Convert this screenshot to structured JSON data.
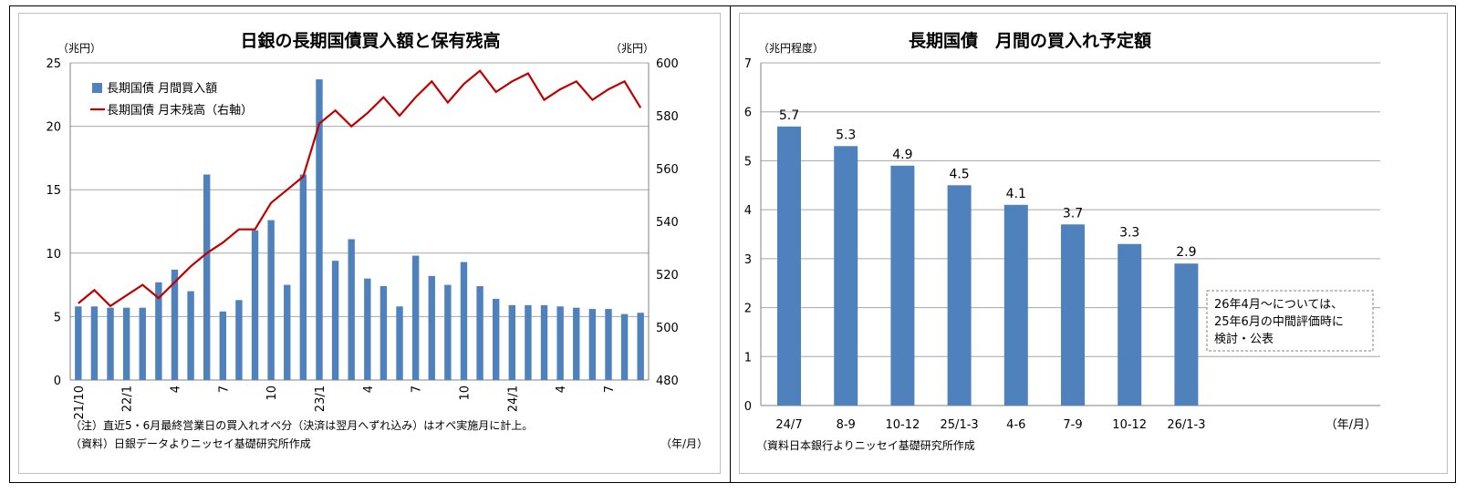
{
  "chart_data": [
    {
      "type": "bar+line",
      "title": "日銀の長期国債買入額と保有残高",
      "y_left_unit": "（兆円）",
      "y_right_unit": "（兆円）",
      "x_unit": "（年/月）",
      "ylim_left": [
        0,
        25
      ],
      "ylim_right": [
        480,
        600
      ],
      "yticks_left": [
        "0",
        "5",
        "10",
        "15",
        "20",
        "25"
      ],
      "yticks_right": [
        "480",
        "500",
        "520",
        "540",
        "560",
        "580",
        "600"
      ],
      "x_tick_labels": [
        {
          "index": 0,
          "label": "21/10"
        },
        {
          "index": 3,
          "label": "22/1"
        },
        {
          "index": 6,
          "label": "4"
        },
        {
          "index": 9,
          "label": "7"
        },
        {
          "index": 12,
          "label": "10"
        },
        {
          "index": 15,
          "label": "23/1"
        },
        {
          "index": 18,
          "label": "4"
        },
        {
          "index": 21,
          "label": "7"
        },
        {
          "index": 24,
          "label": "10"
        },
        {
          "index": 27,
          "label": "24/1"
        },
        {
          "index": 30,
          "label": "4"
        },
        {
          "index": 33,
          "label": "7"
        }
      ],
      "legend_position": "top-left",
      "grid": true,
      "series": [
        {
          "name": "長期国債  月間買入額",
          "type": "bar",
          "axis": "left",
          "color": "#4f81bd",
          "values": [
            5.8,
            5.8,
            5.7,
            5.7,
            5.7,
            7.7,
            8.7,
            7.0,
            16.2,
            5.4,
            6.3,
            11.8,
            12.6,
            7.5,
            16.2,
            23.7,
            9.4,
            11.1,
            8.0,
            7.4,
            5.8,
            9.8,
            8.2,
            7.5,
            9.3,
            7.4,
            6.4,
            5.9,
            5.9,
            5.9,
            5.8,
            5.7,
            5.6,
            5.6,
            5.2,
            5.3
          ]
        },
        {
          "name": "長期国債  月末残高（右軸）",
          "type": "line",
          "axis": "right",
          "color": "#c00000",
          "values": [
            509,
            514,
            508,
            512,
            516,
            511,
            517,
            523,
            528,
            532,
            537,
            537,
            547,
            552,
            557,
            577,
            582,
            576,
            581,
            587,
            580,
            587,
            593,
            585,
            592,
            597,
            589,
            593,
            596,
            586,
            590,
            593,
            586,
            590,
            593,
            583
          ]
        }
      ],
      "notes": [
        "（注）直近5・6月最終営業日の買入れオペ分（決済は翌月へずれ込み）はオペ実施月に計上。",
        "（資料）日銀データよりニッセイ基礎研究所作成"
      ]
    },
    {
      "type": "bar",
      "title": "長期国債　月間の買入れ予定額",
      "y_unit": "（兆円程度）",
      "x_unit": "（年/月）",
      "ylim": [
        0,
        7
      ],
      "yticks": [
        "0",
        "1",
        "2",
        "3",
        "4",
        "5",
        "6",
        "7"
      ],
      "categories": [
        "24/7",
        "8-9",
        "10-12",
        "25/1-3",
        "4-6",
        "7-9",
        "10-12",
        "26/1-3"
      ],
      "values": [
        5.7,
        5.3,
        4.9,
        4.5,
        4.1,
        3.7,
        3.3,
        2.9
      ],
      "value_labels": [
        "5.7",
        "5.3",
        "4.9",
        "4.5",
        "4.1",
        "3.7",
        "3.3",
        "2.9"
      ],
      "color": "#4f81bd",
      "grid": true,
      "annotation": [
        "26年4月～については、",
        "25年6月の中間評価時に",
        "検討・公表"
      ],
      "source": "（資料日本銀行よりニッセイ基礎研究所作成"
    }
  ]
}
